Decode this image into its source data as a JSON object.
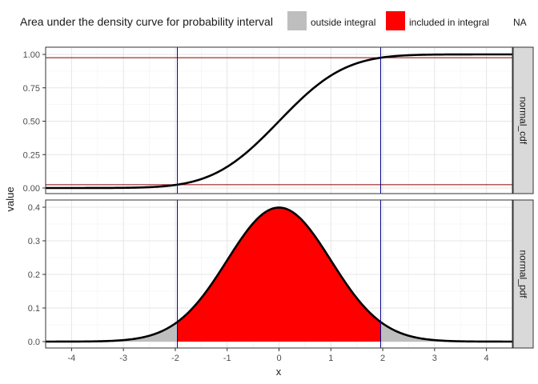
{
  "chart_data": {
    "type": "area",
    "title": "",
    "xlabel": "x",
    "ylabel": "value",
    "legend": {
      "title": "Area under the density curve for probability interval",
      "placement": "top",
      "entries": [
        {
          "label": "outside integral",
          "color": "#bebebe"
        },
        {
          "label": "included in integral",
          "color": "#ff0000"
        },
        {
          "label": "NA",
          "color": "#ffffff"
        }
      ]
    },
    "xlim": [
      -4.5,
      4.5
    ],
    "xticks": [
      -4,
      -3,
      -2,
      -1,
      0,
      1,
      2,
      3,
      4
    ],
    "grid": true,
    "vertical_lines": {
      "x": [
        -1.96,
        1.96
      ],
      "color": "#00008b"
    },
    "panels": [
      {
        "strip": "normal_cdf",
        "ylim": [
          0,
          1
        ],
        "yticks": [
          "0.00",
          "0.25",
          "0.50",
          "0.75",
          "1.00"
        ],
        "horizontal_lines": {
          "y": [
            0.025,
            0.975
          ],
          "color": "#8b0000"
        },
        "series": [
          {
            "x": [
              -4.5,
              -4.0,
              -3.5,
              -3.0,
              -2.5,
              -2.0,
              -1.5,
              -1.0,
              -0.5,
              0.0,
              0.5,
              1.0,
              1.5,
              2.0,
              2.5,
              3.0,
              3.5,
              4.0,
              4.5
            ],
            "values": [
              0.0,
              0.0,
              0.0002,
              0.0013,
              0.0062,
              0.0228,
              0.0668,
              0.1587,
              0.3085,
              0.5,
              0.6915,
              0.8413,
              0.9332,
              0.9772,
              0.9938,
              0.9987,
              0.9998,
              1.0,
              1.0
            ]
          }
        ]
      },
      {
        "strip": "normal_pdf",
        "ylim": [
          0,
          0.4
        ],
        "yticks": [
          "0.0",
          "0.1",
          "0.2",
          "0.3",
          "0.4"
        ],
        "fill_interval": [
          -1.96,
          1.96
        ],
        "series": [
          {
            "x": [
              -4.5,
              -4.0,
              -3.5,
              -3.0,
              -2.5,
              -2.0,
              -1.5,
              -1.0,
              -0.5,
              0.0,
              0.5,
              1.0,
              1.5,
              2.0,
              2.5,
              3.0,
              3.5,
              4.0,
              4.5
            ],
            "values": [
              0.0,
              0.0001,
              0.0009,
              0.0044,
              0.0175,
              0.054,
              0.1295,
              0.242,
              0.3521,
              0.3989,
              0.3521,
              0.242,
              0.1295,
              0.054,
              0.0175,
              0.0044,
              0.0009,
              0.0001,
              0.0
            ]
          }
        ]
      }
    ]
  }
}
